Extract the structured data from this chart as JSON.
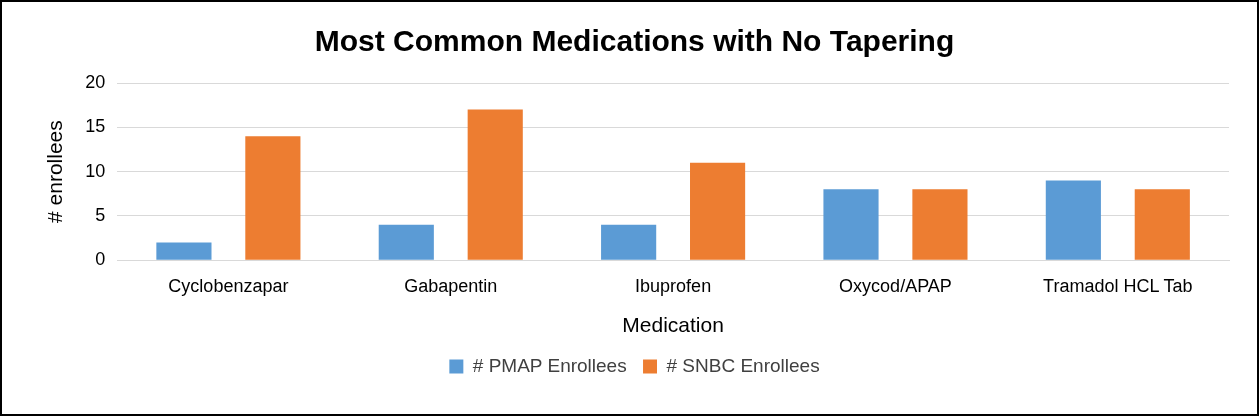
{
  "chart_data": {
    "type": "bar",
    "title": "Most Common Medications with No Tapering",
    "xlabel": "Medication",
    "ylabel": "# enrollees",
    "categories": [
      "Cyclobenzapar",
      "Gabapentin",
      "Ibuprofen",
      "Oxycod/APAP",
      "Tramadol HCL Tab"
    ],
    "series": [
      {
        "name": "# PMAP Enrollees",
        "color": "#5b9bd5",
        "values": [
          2,
          4,
          4,
          8,
          9
        ]
      },
      {
        "name": "# SNBC Enrollees",
        "color": "#ed7d31",
        "values": [
          14,
          17,
          11,
          8,
          8
        ]
      }
    ],
    "ylim": [
      0,
      20
    ],
    "yticks": [
      0,
      5,
      10,
      15,
      20
    ],
    "grid": "y",
    "legend": "bottom"
  }
}
